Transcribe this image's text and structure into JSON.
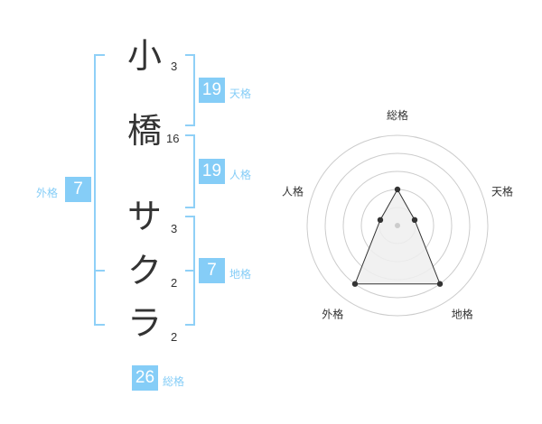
{
  "name": {
    "characters": [
      {
        "char": "小",
        "strokes": "3"
      },
      {
        "char": "橋",
        "strokes": "16"
      },
      {
        "char": "サ",
        "strokes": "3"
      },
      {
        "char": "ク",
        "strokes": "2"
      },
      {
        "char": "ラ",
        "strokes": "2"
      }
    ]
  },
  "fortunes": {
    "tenkaku": {
      "label": "天格",
      "value": "19"
    },
    "jinkaku": {
      "label": "人格",
      "value": "19"
    },
    "chikaku": {
      "label": "地格",
      "value": "7"
    },
    "gaikaku": {
      "label": "外格",
      "value": "7"
    },
    "soukaku": {
      "label": "総格",
      "value": "26"
    }
  },
  "colors": {
    "accent": "#85cdf7",
    "bracket": "#8fd0f7",
    "radar_fill": "#efefef",
    "radar_line": "#333333"
  },
  "chart_data": {
    "type": "radar",
    "axes": [
      "総格",
      "天格",
      "地格",
      "外格",
      "人格"
    ],
    "values": [
      2,
      1,
      4,
      4,
      1
    ],
    "range": [
      0,
      5
    ],
    "rings": 5
  }
}
